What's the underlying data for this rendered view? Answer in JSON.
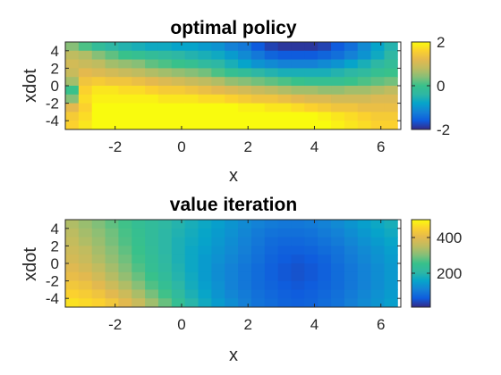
{
  "chart_data": [
    {
      "type": "heatmap",
      "title": "optimal policy",
      "xlabel": "x",
      "ylabel": "xdot",
      "xlim": [
        -3.5,
        6.6
      ],
      "ylim": [
        -5,
        5
      ],
      "xticks": [
        -2,
        0,
        2,
        4,
        6
      ],
      "xtick_labels": [
        "-2",
        "0",
        "2",
        "4",
        "6"
      ],
      "yticks": [
        4,
        2,
        0,
        -2,
        -4
      ],
      "ytick_labels": [
        "4",
        "2",
        "0",
        "-2",
        "-4"
      ],
      "x_centers": [
        -3.3,
        -2.9,
        -2.5,
        -2.1,
        -1.7,
        -1.3,
        -0.9,
        -0.5,
        -0.1,
        0.3,
        0.7,
        1.1,
        1.5,
        1.9,
        2.3,
        2.7,
        3.1,
        3.5,
        3.9,
        4.3,
        4.7,
        5.1,
        5.5,
        5.9,
        6.3
      ],
      "y_centers": [
        4.5,
        3.5,
        2.5,
        1.5,
        0.5,
        -0.5,
        -1.5,
        -2.5,
        -3.5,
        -4.5
      ],
      "values": [
        [
          0.4,
          0.1,
          -0.2,
          -0.4,
          -0.5,
          -0.6,
          -0.7,
          -0.7,
          -0.8,
          -0.8,
          -0.9,
          -1.0,
          -1.2,
          -1.3,
          -1.6,
          -1.8,
          -1.9,
          -1.9,
          -1.9,
          -1.8,
          -1.6,
          -1.4,
          -1.1,
          -0.8,
          -0.5
        ],
        [
          0.8,
          0.7,
          0.4,
          0.2,
          0.0,
          -0.1,
          -0.2,
          -0.3,
          -0.4,
          -0.5,
          -0.6,
          -0.7,
          -0.9,
          -1.1,
          -1.3,
          -1.5,
          -1.6,
          -1.6,
          -1.6,
          -1.5,
          -1.4,
          -1.2,
          -1.0,
          -0.7,
          -0.4
        ],
        [
          1.0,
          0.9,
          0.8,
          0.6,
          0.5,
          0.4,
          0.2,
          0.1,
          0.0,
          -0.1,
          -0.3,
          -0.4,
          -0.6,
          -0.8,
          -1.0,
          -1.1,
          -1.2,
          -1.2,
          -1.2,
          -1.1,
          -1.0,
          -0.8,
          -0.6,
          -0.4,
          -0.2
        ],
        [
          0.9,
          1.2,
          1.1,
          1.0,
          0.9,
          0.8,
          0.7,
          0.6,
          0.5,
          0.4,
          0.3,
          0.1,
          -0.1,
          -0.2,
          -0.4,
          -0.5,
          -0.6,
          -0.6,
          -0.6,
          -0.6,
          -0.5,
          -0.4,
          -0.3,
          -0.1,
          0.0
        ],
        [
          0.6,
          1.4,
          1.5,
          1.4,
          1.4,
          1.3,
          1.2,
          1.1,
          1.0,
          0.9,
          0.8,
          0.7,
          0.5,
          0.4,
          0.3,
          0.2,
          0.1,
          0.0,
          -0.1,
          -0.1,
          -0.1,
          0.0,
          0.1,
          0.2,
          0.3
        ],
        [
          0.0,
          1.6,
          1.8,
          1.8,
          1.7,
          1.7,
          1.6,
          1.5,
          1.5,
          1.4,
          1.3,
          1.2,
          1.1,
          1.0,
          0.9,
          0.8,
          0.7,
          0.6,
          0.6,
          0.5,
          0.5,
          0.6,
          0.6,
          0.7,
          0.8
        ],
        [
          0.4,
          1.7,
          1.9,
          1.9,
          1.9,
          1.9,
          1.9,
          1.8,
          1.8,
          1.8,
          1.7,
          1.7,
          1.6,
          1.5,
          1.4,
          1.4,
          1.3,
          1.2,
          1.1,
          1.1,
          1.0,
          1.0,
          1.0,
          1.1,
          1.1
        ],
        [
          1.2,
          1.6,
          2.0,
          2.0,
          2.0,
          2.0,
          2.0,
          2.0,
          2.0,
          2.0,
          2.0,
          2.0,
          2.0,
          1.9,
          1.9,
          1.8,
          1.8,
          1.7,
          1.6,
          1.5,
          1.4,
          1.4,
          1.3,
          1.3,
          1.3
        ],
        [
          1.5,
          1.7,
          2.0,
          2.0,
          2.0,
          2.0,
          2.0,
          2.0,
          2.0,
          2.0,
          2.0,
          2.0,
          2.0,
          2.0,
          2.0,
          2.0,
          2.0,
          2.0,
          2.0,
          1.9,
          1.8,
          1.7,
          1.6,
          1.5,
          1.5
        ],
        [
          1.6,
          1.8,
          2.0,
          2.0,
          2.0,
          2.0,
          2.0,
          2.0,
          2.0,
          2.0,
          2.0,
          2.0,
          2.0,
          2.0,
          2.0,
          2.0,
          2.0,
          2.0,
          2.0,
          2.0,
          1.9,
          1.8,
          1.7,
          1.6,
          1.6
        ]
      ],
      "colorbar": {
        "colormap": "parula",
        "clim": [
          -2,
          2
        ],
        "ticks": [
          2,
          0,
          -2
        ],
        "tick_labels": [
          "2",
          "0",
          "-2"
        ]
      }
    },
    {
      "type": "heatmap",
      "title": "value iteration",
      "xlabel": "x",
      "ylabel": "xdot",
      "xlim": [
        -3.5,
        6.6
      ],
      "ylim": [
        -5,
        5
      ],
      "xticks": [
        -2,
        0,
        2,
        4,
        6
      ],
      "xtick_labels": [
        "-2",
        "0",
        "2",
        "4",
        "6"
      ],
      "yticks": [
        4,
        2,
        0,
        -2,
        -4
      ],
      "ytick_labels": [
        "4",
        "2",
        "0",
        "-2",
        "-4"
      ],
      "x_centers": [
        -3.3,
        -2.9,
        -2.5,
        -2.1,
        -1.7,
        -1.3,
        -0.9,
        -0.5,
        -0.1,
        0.3,
        0.7,
        1.1,
        1.5,
        1.9,
        2.3,
        2.7,
        3.1,
        3.5,
        3.9,
        4.3,
        4.7,
        5.1,
        5.5,
        5.9,
        6.3
      ],
      "y_centers": [
        4.5,
        3.5,
        2.5,
        1.5,
        0.5,
        -0.5,
        -1.5,
        -2.5,
        -3.5,
        -4.5
      ],
      "values": [
        [
          340,
          320,
          300,
          280,
          260,
          240,
          225,
          210,
          195,
          180,
          165,
          150,
          135,
          120,
          110,
          100,
          95,
          95,
          100,
          110,
          120,
          135,
          150,
          165,
          180
        ],
        [
          350,
          330,
          310,
          290,
          265,
          245,
          225,
          205,
          190,
          175,
          160,
          145,
          130,
          115,
          100,
          90,
          85,
          85,
          90,
          100,
          110,
          125,
          140,
          155,
          170
        ],
        [
          360,
          340,
          320,
          295,
          270,
          250,
          225,
          205,
          185,
          170,
          155,
          140,
          125,
          110,
          95,
          80,
          75,
          75,
          80,
          90,
          100,
          115,
          130,
          145,
          160
        ],
        [
          370,
          355,
          330,
          305,
          280,
          255,
          230,
          205,
          185,
          165,
          150,
          135,
          120,
          105,
          90,
          75,
          65,
          65,
          70,
          80,
          90,
          105,
          120,
          135,
          150
        ],
        [
          380,
          365,
          340,
          315,
          290,
          260,
          235,
          210,
          185,
          165,
          145,
          130,
          115,
          100,
          85,
          70,
          60,
          55,
          60,
          70,
          85,
          100,
          115,
          130,
          145
        ],
        [
          395,
          380,
          355,
          330,
          300,
          270,
          240,
          215,
          190,
          165,
          145,
          125,
          110,
          95,
          80,
          65,
          55,
          50,
          55,
          65,
          80,
          95,
          110,
          125,
          140
        ],
        [
          410,
          400,
          375,
          345,
          315,
          285,
          255,
          225,
          195,
          170,
          145,
          125,
          110,
          95,
          80,
          65,
          55,
          50,
          55,
          65,
          80,
          95,
          110,
          125,
          140
        ],
        [
          430,
          420,
          400,
          370,
          340,
          305,
          270,
          240,
          205,
          175,
          150,
          130,
          110,
          95,
          80,
          70,
          60,
          55,
          60,
          70,
          80,
          95,
          110,
          125,
          140
        ],
        [
          450,
          440,
          425,
          400,
          370,
          335,
          295,
          260,
          220,
          185,
          160,
          135,
          115,
          100,
          85,
          75,
          65,
          60,
          65,
          75,
          85,
          100,
          115,
          130,
          145
        ],
        [
          470,
          460,
          450,
          430,
          400,
          365,
          325,
          285,
          240,
          200,
          170,
          145,
          125,
          105,
          90,
          80,
          70,
          65,
          70,
          80,
          90,
          105,
          120,
          135,
          150
        ]
      ],
      "colorbar": {
        "colormap": "parula",
        "clim": [
          10,
          500
        ],
        "ticks": [
          400,
          200
        ],
        "tick_labels": [
          "400",
          "200"
        ]
      }
    }
  ]
}
